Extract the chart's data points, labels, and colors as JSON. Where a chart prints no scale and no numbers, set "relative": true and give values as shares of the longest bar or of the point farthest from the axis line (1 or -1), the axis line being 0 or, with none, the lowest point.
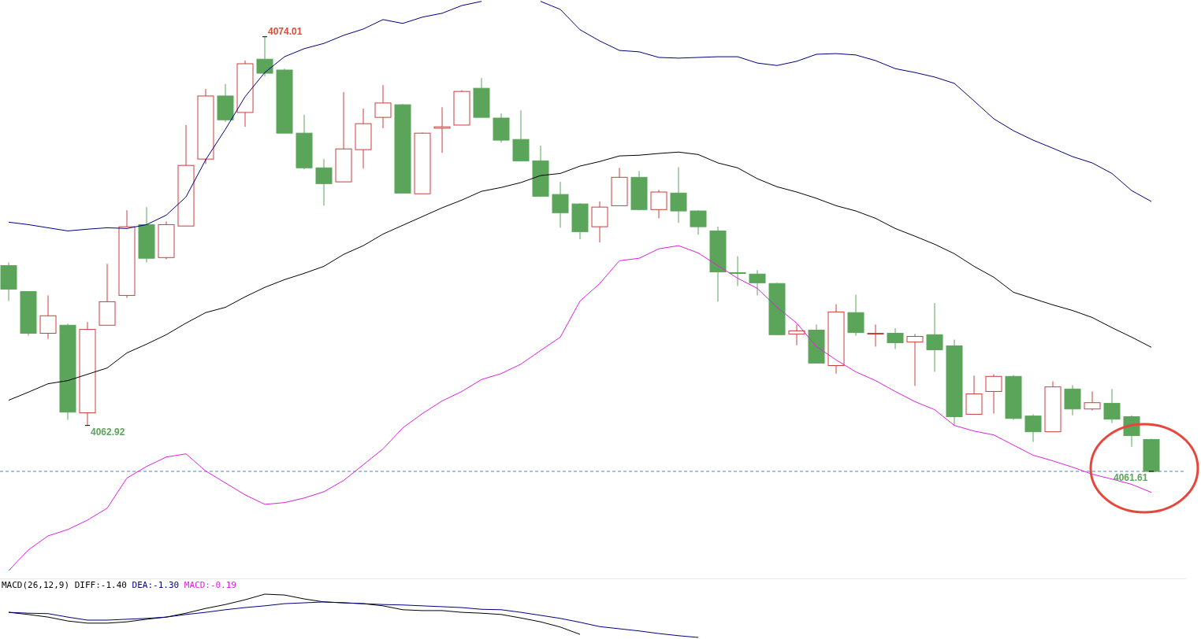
{
  "chart_data": [
    {
      "type": "candlestick",
      "categories": [
        null,
        null,
        null,
        null,
        null,
        null,
        null,
        null,
        null,
        null,
        null,
        null,
        null,
        null,
        null,
        null,
        null,
        null,
        null,
        null,
        null,
        null,
        null,
        null,
        null,
        null,
        null,
        null,
        null,
        null,
        null,
        null,
        null,
        null,
        null,
        null,
        null,
        null,
        null,
        null,
        null,
        null,
        null,
        null,
        null,
        null,
        null,
        null,
        null,
        null,
        null,
        null,
        null,
        null,
        null,
        null,
        null,
        null,
        null
      ],
      "ohlc": [
        [
          4067.48,
          4067.57,
          4066.47,
          4066.81
        ],
        [
          4066.74,
          4066.74,
          4065.48,
          4065.55
        ],
        [
          4065.55,
          4066.63,
          4065.39,
          4066.05
        ],
        [
          4065.78,
          4065.82,
          4063.08,
          4063.3
        ],
        [
          4063.28,
          4065.87,
          4062.92,
          4065.66
        ],
        [
          4065.78,
          4067.53,
          4065.78,
          4066.45
        ],
        [
          4066.63,
          4069.06,
          4066.56,
          4068.59
        ],
        [
          4068.65,
          4069.15,
          4067.57,
          4067.69
        ],
        [
          4067.71,
          4068.74,
          4067.66,
          4068.65
        ],
        [
          4068.61,
          4071.49,
          4068.61,
          4070.34
        ],
        [
          4070.52,
          4072.52,
          4070.38,
          4072.32
        ],
        [
          4072.32,
          4072.66,
          4071.58,
          4071.64
        ],
        [
          4071.85,
          4073.33,
          4071.44,
          4073.24
        ],
        [
          4073.37,
          4074.01,
          4072.88,
          4072.97
        ],
        [
          4073.06,
          4073.1,
          4071.26,
          4071.26
        ],
        [
          4071.26,
          4071.78,
          4070.23,
          4070.27
        ],
        [
          4070.27,
          4070.52,
          4069.19,
          4069.82
        ],
        [
          4069.87,
          4072.43,
          4069.87,
          4070.81
        ],
        [
          4070.79,
          4071.96,
          4070.25,
          4071.53
        ],
        [
          4071.71,
          4072.63,
          4071.4,
          4072.12
        ],
        [
          4072.07,
          4072.09,
          4069.55,
          4069.55
        ],
        [
          4069.53,
          4071.28,
          4069.53,
          4071.26
        ],
        [
          4071.4,
          4072.0,
          4070.7,
          4071.44
        ],
        [
          4071.49,
          4072.48,
          4071.49,
          4072.45
        ],
        [
          4072.54,
          4072.83,
          4071.71,
          4071.71
        ],
        [
          4071.69,
          4071.82,
          4070.99,
          4071.06
        ],
        [
          4071.08,
          4071.91,
          4070.47,
          4070.47
        ],
        [
          4070.47,
          4070.9,
          4069.44,
          4069.46
        ],
        [
          4069.51,
          4069.87,
          4068.56,
          4068.99
        ],
        [
          4069.24,
          4069.26,
          4068.23,
          4068.45
        ],
        [
          4068.59,
          4069.31,
          4068.14,
          4069.15
        ],
        [
          4069.19,
          4070.27,
          4069.19,
          4070.0
        ],
        [
          4070.0,
          4070.18,
          4069.06,
          4069.08
        ],
        [
          4069.08,
          4069.64,
          4068.83,
          4069.58
        ],
        [
          4069.55,
          4070.29,
          4068.7,
          4069.04
        ],
        [
          4069.04,
          4069.06,
          4068.36,
          4068.59
        ],
        [
          4068.47,
          4068.59,
          4066.45,
          4067.3
        ],
        [
          4067.28,
          4067.75,
          4066.9,
          4067.28
        ],
        [
          4067.24,
          4067.35,
          4066.63,
          4066.99
        ],
        [
          4066.97,
          4066.99,
          4065.51,
          4065.51
        ],
        [
          4065.53,
          4065.8,
          4065.21,
          4065.62
        ],
        [
          4065.64,
          4065.8,
          4064.7,
          4064.7
        ],
        [
          4064.63,
          4066.38,
          4064.4,
          4066.16
        ],
        [
          4066.14,
          4066.65,
          4065.48,
          4065.57
        ],
        [
          4065.53,
          4065.8,
          4065.17,
          4065.55
        ],
        [
          4065.55,
          4065.69,
          4065.1,
          4065.28
        ],
        [
          4065.3,
          4065.53,
          4064.05,
          4065.46
        ],
        [
          4065.51,
          4066.41,
          4064.45,
          4065.08
        ],
        [
          4065.19,
          4065.37,
          4062.93,
          4063.17
        ],
        [
          4063.24,
          4064.34,
          4063.24,
          4063.82
        ],
        [
          4063.89,
          4064.38,
          4063.26,
          4064.32
        ],
        [
          4064.32,
          4064.36,
          4063.08,
          4063.12
        ],
        [
          4063.19,
          4063.24,
          4062.45,
          4062.74
        ],
        [
          4062.74,
          4064.18,
          4062.74,
          4064.02
        ],
        [
          4063.96,
          4064.07,
          4063.21,
          4063.39
        ],
        [
          4063.39,
          4063.89,
          4063.35,
          4063.57
        ],
        [
          4063.55,
          4063.96,
          4062.99,
          4063.1
        ],
        [
          4063.17,
          4063.21,
          4062.31,
          4062.63
        ],
        [
          4062.52,
          4062.54,
          4061.61,
          4061.61
        ]
      ],
      "colors": [
        "#5ba55b",
        "#5ba55b",
        "#cc3c3c",
        "#5ba55b",
        "#cc3c3c",
        "#cc3c3c",
        "#cc3c3c",
        "#5ba55b",
        "#cc3c3c",
        "#cc3c3c",
        "#cc3c3c",
        "#5ba55b",
        "#cc3c3c",
        "#5ba55b",
        "#5ba55b",
        "#5ba55b",
        "#5ba55b",
        "#cc3c3c",
        "#cc3c3c",
        "#cc3c3c",
        "#5ba55b",
        "#cc3c3c",
        "#cc3c3c",
        "#cc3c3c",
        "#5ba55b",
        "#5ba55b",
        "#5ba55b",
        "#5ba55b",
        "#5ba55b",
        "#5ba55b",
        "#cc3c3c",
        "#cc3c3c",
        "#5ba55b",
        "#cc3c3c",
        "#5ba55b",
        "#5ba55b",
        "#5ba55b",
        "#5ba55b",
        "#5ba55b",
        "#5ba55b",
        "#cc3c3c",
        "#5ba55b",
        "#cc3c3c",
        "#5ba55b",
        "#cc3c3c",
        "#5ba55b",
        "#cc3c3c",
        "#5ba55b",
        "#5ba55b",
        "#cc3c3c",
        "#cc3c3c",
        "#5ba55b",
        "#5ba55b",
        "#cc3c3c",
        "#5ba55b",
        "#cc3c3c",
        "#5ba55b",
        "#5ba55b",
        "#5ba55b"
      ],
      "series": [
        {
          "type": "line",
          "color": "#00007f",
          "values": [
            4068.72,
            4068.65,
            4068.56,
            4068.47,
            4068.52,
            4068.56,
            4068.54,
            4068.65,
            4068.92,
            4069.44,
            4070.5,
            4071.37,
            4072.3,
            4072.99,
            4073.44,
            4073.67,
            4073.82,
            4074.05,
            4074.23,
            4074.5,
            4074.39,
            4074.57,
            4074.68,
            4074.9,
            4075.02,
            null,
            null,
            4075.02,
            4074.79,
            4074.21,
            4073.89,
            4073.62,
            4073.58,
            4073.42,
            4073.4,
            4073.42,
            4073.44,
            4073.44,
            4073.26,
            4073.19,
            4073.31,
            4073.51,
            4073.53,
            4073.49,
            4073.33,
            4073.1,
            4072.99,
            4072.86,
            4072.68,
            4072.18,
            4071.67,
            4071.33,
            4071.06,
            4070.83,
            4070.59,
            4070.41,
            4070.11,
            4069.62,
            4069.31
          ]
        },
        {
          "type": "line",
          "color": "#000000",
          "values": [
            4063.64,
            4063.87,
            4064.11,
            4064.2,
            4064.38,
            4064.56,
            4064.99,
            4065.24,
            4065.51,
            4065.84,
            4066.14,
            4066.29,
            4066.59,
            4066.86,
            4067.08,
            4067.26,
            4067.46,
            4067.8,
            4068.05,
            4068.38,
            4068.63,
            4068.88,
            4069.13,
            4069.35,
            4069.6,
            4069.71,
            4069.85,
            4070.05,
            4070.11,
            4070.32,
            4070.45,
            4070.61,
            4070.63,
            4070.68,
            4070.72,
            4070.65,
            4070.41,
            4070.27,
            4069.96,
            4069.73,
            4069.58,
            4069.4,
            4069.19,
            4069.04,
            4068.83,
            4068.54,
            4068.32,
            4068.09,
            4067.82,
            4067.46,
            4067.15,
            4066.72,
            4066.54,
            4066.36,
            4066.2,
            4066.0,
            4065.71,
            4065.44,
            4065.15
          ]
        },
        {
          "type": "line",
          "color": "#e020e0",
          "values": [
            4058.78,
            4059.37,
            4059.77,
            4059.95,
            4060.22,
            4060.56,
            4061.42,
            4061.75,
            4062.02,
            4062.11,
            4061.62,
            4061.28,
            4060.94,
            4060.67,
            4060.72,
            4060.85,
            4061.03,
            4061.35,
            4061.8,
            4062.25,
            4062.85,
            4063.26,
            4063.62,
            4063.89,
            4064.23,
            4064.4,
            4064.67,
            4065.06,
            4065.44,
            4066.47,
            4066.97,
            4067.62,
            4067.69,
            4067.96,
            4068.05,
            4067.84,
            4067.48,
            4067.12,
            4066.83,
            4066.29,
            4065.84,
            4065.17,
            4064.79,
            4064.45,
            4064.2,
            4063.89,
            4063.6,
            4063.37,
            4062.92,
            4062.76,
            4062.65,
            4062.36,
            4062.07,
            4061.91,
            4061.73,
            4061.53,
            4061.39,
            4061.24,
            4061.01
          ]
        }
      ],
      "ref_lines": [
        {
          "axis": "y",
          "value": 4061.61,
          "color": "#3c8cc8",
          "line_style": "dashed"
        }
      ],
      "annotations": [
        "4074.01",
        "4062.92",
        "4061.61"
      ]
    },
    {
      "type": "line",
      "relative": true,
      "legend": "top left",
      "title": "MACD(26,12,9)",
      "categories": [
        null,
        null,
        null,
        null,
        null,
        null,
        null,
        null,
        null,
        null,
        null,
        null,
        null,
        null,
        null,
        null,
        null,
        null,
        null,
        null,
        null,
        null,
        null,
        null,
        null,
        null,
        null,
        null,
        null,
        null,
        null,
        null,
        null,
        null,
        null,
        null,
        null,
        null,
        null,
        null,
        null,
        null,
        null,
        null,
        null,
        null,
        null,
        null,
        null,
        null,
        null,
        null,
        null,
        null,
        null,
        null,
        null,
        null,
        null
      ],
      "series": [
        {
          "name": "DIFF:-1.40",
          "color": "#000000",
          "values": [
            0.58,
            0.53,
            0.47,
            0.38,
            0.33,
            0.33,
            0.36,
            0.42,
            0.47,
            0.56,
            0.67,
            0.76,
            0.87,
            1,
            0.98,
            0.89,
            0.82,
            0.8,
            0.78,
            0.73,
            0.64,
            0.62,
            0.62,
            0.58,
            0.56,
            0.53,
            0.45,
            0.36,
            0.24,
            0.07,
            null,
            null,
            null,
            null,
            null,
            null,
            null,
            null,
            null,
            null,
            null,
            null,
            null,
            null,
            null,
            null,
            null,
            null,
            null,
            null,
            null,
            null,
            null,
            null,
            null,
            null,
            null,
            null,
            null
          ]
        },
        {
          "name": "DEA:-1.30",
          "color": "#000080",
          "values": [
            0.58,
            0.56,
            0.55,
            0.47,
            0.4,
            0.4,
            0.42,
            0.44,
            0.47,
            0.53,
            0.58,
            0.64,
            0.69,
            0.73,
            0.78,
            0.8,
            0.82,
            0.8,
            0.78,
            0.76,
            0.75,
            0.73,
            0.71,
            0.69,
            0.65,
            0.64,
            0.58,
            0.51,
            0.44,
            0.35,
            0.25,
            0.2,
            0.15,
            0.09,
            0.04,
            0,
            null,
            null,
            null,
            null,
            null,
            null,
            null,
            null,
            null,
            null,
            null,
            null,
            null,
            null,
            null,
            null,
            null,
            null,
            null,
            null,
            null,
            null,
            null
          ]
        }
      ],
      "annotations": [
        "MACD:-0.19"
      ]
    }
  ]
}
